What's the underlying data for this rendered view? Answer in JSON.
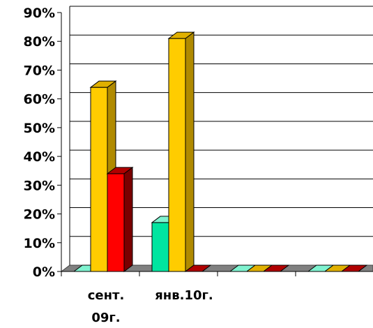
{
  "chart_data": {
    "type": "bar",
    "categories": [
      "сент. 09г.",
      "янв.10г.",
      "",
      ""
    ],
    "category_lines": [
      [
        "сент.",
        "09г."
      ],
      [
        "янв.10г."
      ],
      [],
      []
    ],
    "series": [
      {
        "values": [
          0,
          17,
          0,
          0
        ],
        "color": "#00E5A0",
        "dark": "#00A070",
        "top": "#7FF2CF"
      },
      {
        "values": [
          64,
          81,
          0,
          0
        ],
        "color": "#FFCC00",
        "dark": "#B08A00",
        "top": "#E0B000"
      },
      {
        "values": [
          34,
          0,
          0,
          0
        ],
        "color": "#FF0000",
        "dark": "#7A0000",
        "top": "#B00000"
      }
    ],
    "ylim": [
      0,
      90
    ],
    "yticks": [
      "0%",
      "10%",
      "20%",
      "30%",
      "40%",
      "50%",
      "60%",
      "70%",
      "80%",
      "90%"
    ],
    "grid": true,
    "floor_color": "#808080"
  }
}
